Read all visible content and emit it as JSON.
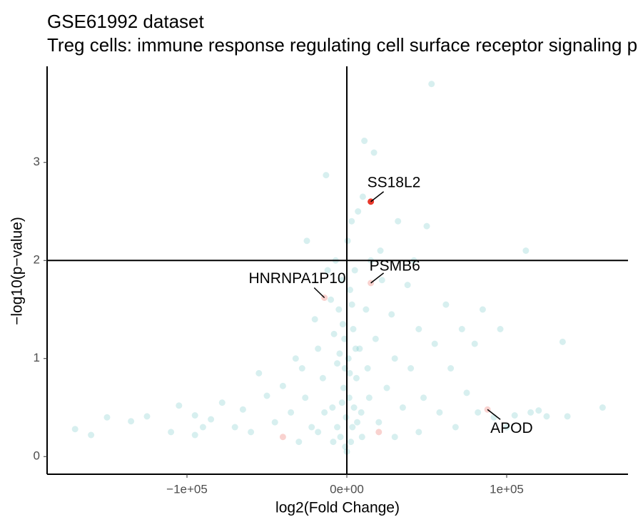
{
  "chart_data": {
    "type": "scatter",
    "title": "GSE61992 dataset",
    "subtitle": "Treg cells: immune response regulating cell surface receptor signaling pathway",
    "x_label": "log2(Fold Change)",
    "y_label": "−log10(p−value)",
    "xlim": [
      -187500,
      175900
    ],
    "ylim": [
      -0.18,
      3.98
    ],
    "xticks": [
      {
        "value": -100000,
        "label": "−1e+05"
      },
      {
        "value": 0,
        "label": "0e+00"
      },
      {
        "value": 100000,
        "label": "1e+05"
      }
    ],
    "yticks": [
      0,
      1,
      2,
      3
    ],
    "hline": 2,
    "vline": 0,
    "series": [
      {
        "color": "#5fc1c1",
        "opacity": 0.25,
        "x": [
          -170000,
          -160000,
          -150000,
          -135000,
          -125000,
          -110000,
          -105000,
          -95000,
          -90000,
          -85000,
          -78000,
          -70000,
          -65000,
          -60000,
          -55000,
          -50000,
          -45000,
          -40000,
          -35000,
          -32000,
          -28000,
          -25000,
          -26000,
          -20000,
          -22000,
          -18000,
          -15000,
          -12000,
          -13000,
          -10000,
          -9000,
          -8000,
          -7000,
          -6000,
          -5000,
          -4000,
          -3000,
          -2000,
          -1500,
          -1000,
          -500,
          0,
          500,
          1000,
          1500,
          2000,
          3000,
          3500,
          4000,
          5000,
          6000,
          7000,
          8000,
          9000,
          10000,
          11000,
          12000,
          13000,
          15000,
          17000,
          18000,
          20000,
          21000,
          22000,
          25000,
          28000,
          30000,
          32000,
          35000,
          38000,
          40000,
          42000,
          45000,
          48000,
          50000,
          53000,
          55000,
          58000,
          62000,
          65000,
          68000,
          72000,
          75000,
          80000,
          82000,
          85000,
          92000,
          96000,
          100000,
          105000,
          112000,
          115000,
          120000,
          125000,
          135000,
          138000,
          160000,
          -95000,
          -30000,
          -18000,
          30000,
          45000,
          -6000,
          -3000,
          2500,
          4500,
          -1200,
          6500,
          -8500,
          9500,
          -14000,
          14000,
          -2500,
          3200,
          1800,
          -4500,
          5500
        ],
        "values": [
          0.28,
          0.22,
          0.4,
          0.36,
          0.41,
          0.25,
          0.52,
          0.42,
          0.3,
          0.38,
          0.55,
          0.3,
          0.48,
          0.25,
          0.85,
          0.62,
          0.35,
          0.72,
          0.45,
          1.0,
          0.9,
          2.2,
          0.6,
          1.4,
          0.3,
          1.1,
          0.8,
          1.9,
          2.87,
          1.6,
          0.5,
          1.25,
          2.0,
          0.95,
          1.5,
          0.2,
          1.8,
          0.7,
          1.2,
          0.1,
          0.4,
          0.05,
          2.2,
          1.0,
          0.6,
          1.7,
          2.4,
          0.3,
          1.3,
          1.9,
          0.8,
          2.5,
          1.1,
          0.45,
          2.65,
          3.22,
          1.5,
          0.9,
          2.0,
          3.1,
          1.2,
          0.35,
          2.1,
          1.8,
          0.7,
          1.45,
          1.0,
          2.4,
          0.5,
          1.75,
          0.9,
          2.0,
          1.3,
          0.6,
          2.35,
          3.8,
          1.15,
          0.45,
          1.55,
          0.9,
          0.3,
          1.3,
          0.65,
          1.15,
          0.45,
          1.5,
          0.4,
          1.3,
          0.3,
          0.42,
          2.1,
          0.45,
          0.47,
          0.41,
          1.17,
          0.41,
          0.5,
          0.22,
          0.15,
          0.25,
          0.2,
          0.25,
          0.3,
          0.55,
          0.15,
          0.5,
          0.9,
          0.35,
          0.15,
          0.2,
          0.45,
          0.6,
          1.35,
          1.55,
          0.85,
          1.05,
          1.1
        ]
      },
      {
        "color": "#f4a6a0",
        "opacity": 0.5,
        "x": [
          15000,
          -14000,
          88000,
          -40000,
          20000
        ],
        "values": [
          1.77,
          1.62,
          0.48,
          0.2,
          0.25
        ],
        "labels": [
          "PSMB6",
          "HNRNPA1P10",
          "APOD",
          null,
          null
        ]
      },
      {
        "color": "#e8392c",
        "opacity": 1,
        "x": [
          15000
        ],
        "values": [
          2.6
        ],
        "labels": [
          "SS18L2"
        ]
      }
    ]
  }
}
